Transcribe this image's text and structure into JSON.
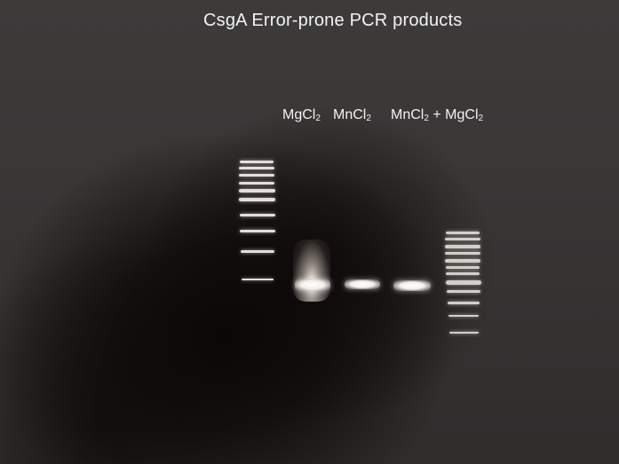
{
  "title": "CsgA Error-prone PCR products",
  "lanes": {
    "lane1": {
      "base": "MgCl",
      "sub": "2"
    },
    "lane2": {
      "base": "MnCl",
      "sub": "2"
    },
    "lane3_part1": {
      "base": "MnCl",
      "sub": "2"
    },
    "plus": "+",
    "lane3_part2": {
      "base": "MgCl",
      "sub": "2"
    }
  }
}
